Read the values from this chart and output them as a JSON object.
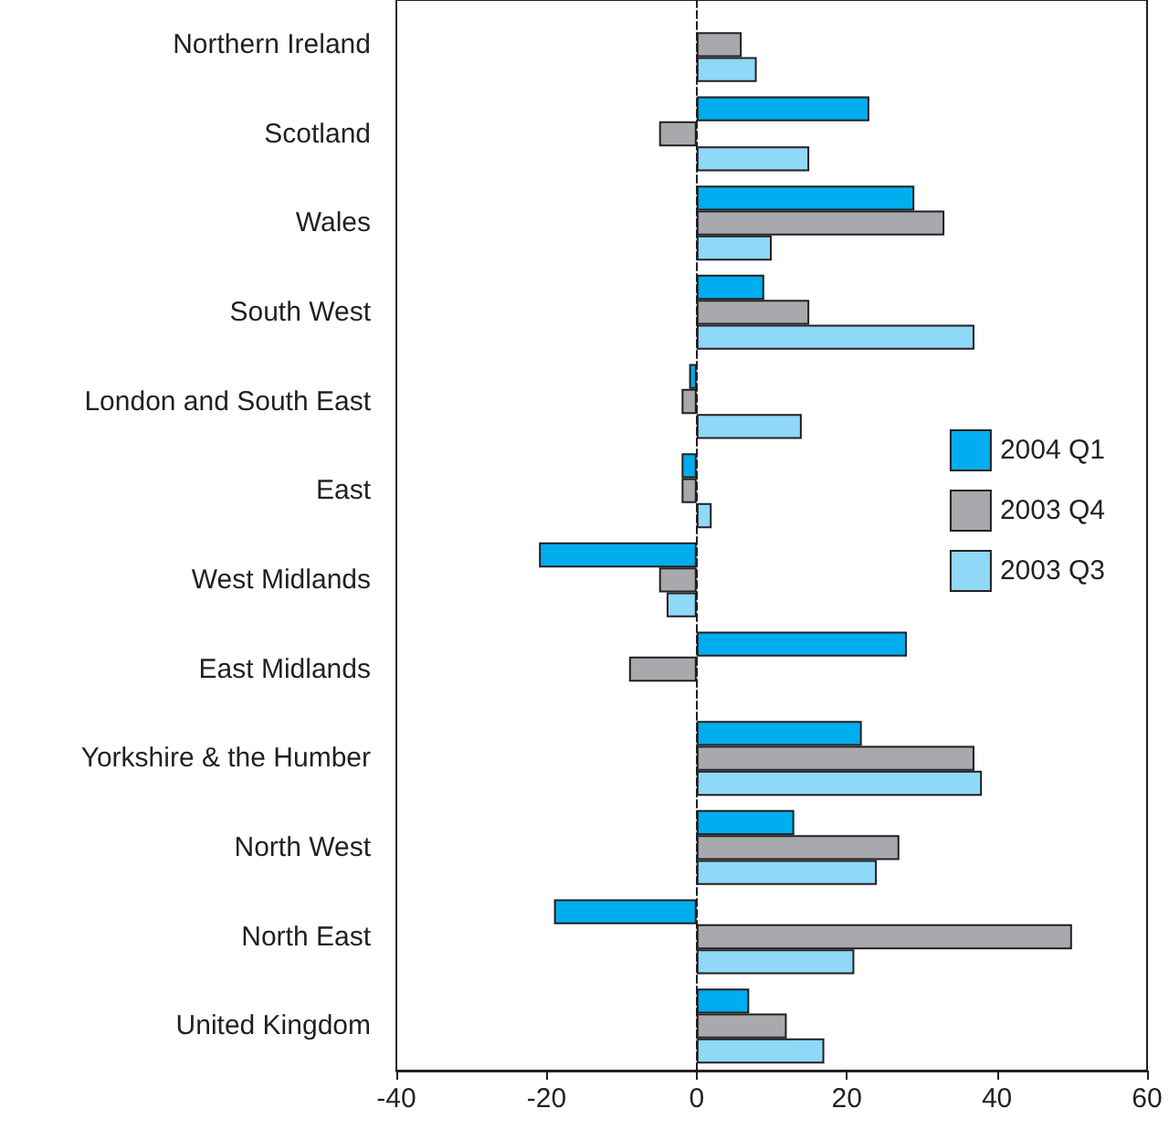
{
  "chart_data": {
    "type": "bar",
    "orientation": "horizontal",
    "categories": [
      "Northern Ireland",
      "Scotland",
      "Wales",
      "South West",
      "London and South East",
      "East",
      "West Midlands",
      "East Midlands",
      "Yorkshire & the Humber",
      "North West",
      "North East",
      "United Kingdom"
    ],
    "series": [
      {
        "name": "2004 Q1",
        "color": "#00adef",
        "values": [
          null,
          23,
          29,
          9,
          -1,
          -2,
          -21,
          28,
          22,
          13,
          -19,
          7
        ]
      },
      {
        "name": "2003 Q4",
        "color": "#a7a9ac",
        "values": [
          6,
          -5,
          33,
          15,
          -2,
          -2,
          -5,
          -9,
          37,
          27,
          50,
          12
        ]
      },
      {
        "name": "2003 Q3",
        "color": "#8fd8f8",
        "values": [
          8,
          15,
          10,
          37,
          14,
          2,
          -4,
          null,
          38,
          24,
          21,
          17
        ]
      }
    ],
    "xlim": [
      -40,
      60
    ],
    "xticks": [
      -40,
      -20,
      0,
      20,
      40,
      60
    ],
    "legend": "right"
  }
}
